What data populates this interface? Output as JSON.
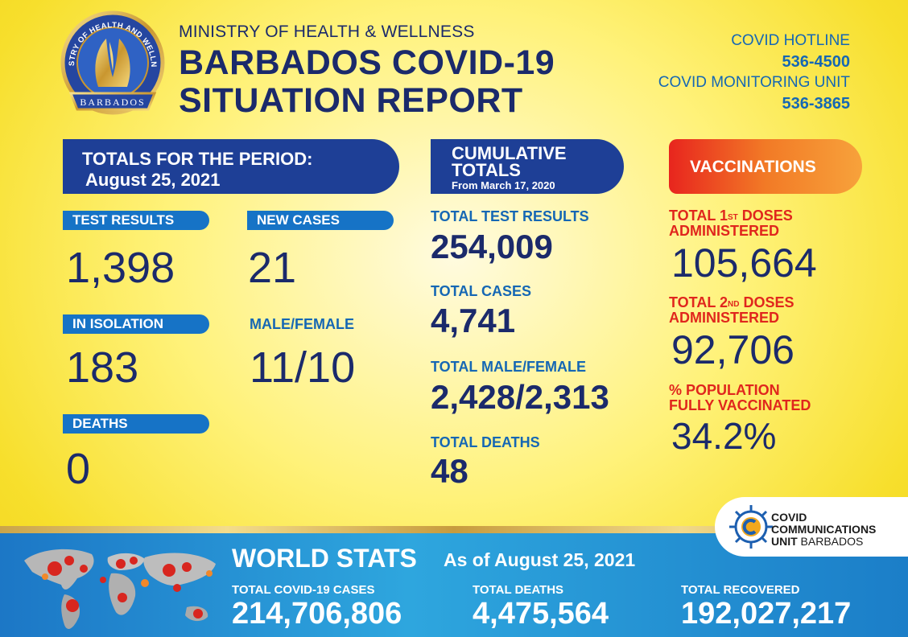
{
  "header": {
    "emblem_text_top": "MINISTRY OF HEALTH AND WELLNESS",
    "emblem_text_bottom": "BARBADOS",
    "ministry": "MINISTRY OF HEALTH & WELLNESS",
    "title_line1": "BARBADOS COVID-19",
    "title_line2": "SITUATION REPORT",
    "hotline_label": "COVID HOTLINE",
    "hotline_number": "536-4500",
    "monitoring_label": "COVID MONITORING UNIT",
    "monitoring_number": "536-3865"
  },
  "period": {
    "banner_line1": "TOTALS FOR THE PERIOD:",
    "banner_line2": "August 25, 2021",
    "test_results_label": "TEST RESULTS",
    "test_results": "1,398",
    "new_cases_label": "NEW CASES",
    "new_cases": "21",
    "isolation_label": "IN ISOLATION",
    "isolation": "183",
    "male_female_label": "MALE/FEMALE",
    "male_female": "11/10",
    "deaths_label": "DEATHS",
    "deaths": "0"
  },
  "cumulative": {
    "banner_line1": "CUMULATIVE",
    "banner_line2": "TOTALS",
    "banner_line3": "From March 17, 2020",
    "test_results_label": "TOTAL TEST RESULTS",
    "test_results": "254,009",
    "cases_label": "TOTAL CASES",
    "cases": "4,741",
    "male_female_label": "TOTAL MALE/FEMALE",
    "male_female": "2,428/2,313",
    "deaths_label": "TOTAL DEATHS",
    "deaths": "48"
  },
  "vaccinations": {
    "banner": "VACCINATIONS",
    "first_label_a": "TOTAL 1",
    "first_sup": "ST",
    "first_label_b": " DOSES",
    "first_label_c": "ADMINISTERED",
    "first_doses": "105,664",
    "second_label_a": "TOTAL 2",
    "second_sup": "ND",
    "second_label_b": " DOSES",
    "second_label_c": "ADMINISTERED",
    "second_doses": "92,706",
    "pct_label_a": "% POPULATION",
    "pct_label_b": "FULLY VACCINATED",
    "pct": "34.2%"
  },
  "world": {
    "title": "WORLD STATS",
    "as_of": "As of August 25, 2021",
    "cases_label": "TOTAL COVID-19 CASES",
    "cases": "214,706,806",
    "deaths_label": "TOTAL DEATHS",
    "deaths": "4,475,564",
    "recovered_label": "TOTAL RECOVERED",
    "recovered": "192,027,217"
  },
  "ccu": {
    "line1": "COVID",
    "line2": "COMMUNICATIONS",
    "line3a": "UNIT",
    "line3b": " BARBADOS"
  }
}
